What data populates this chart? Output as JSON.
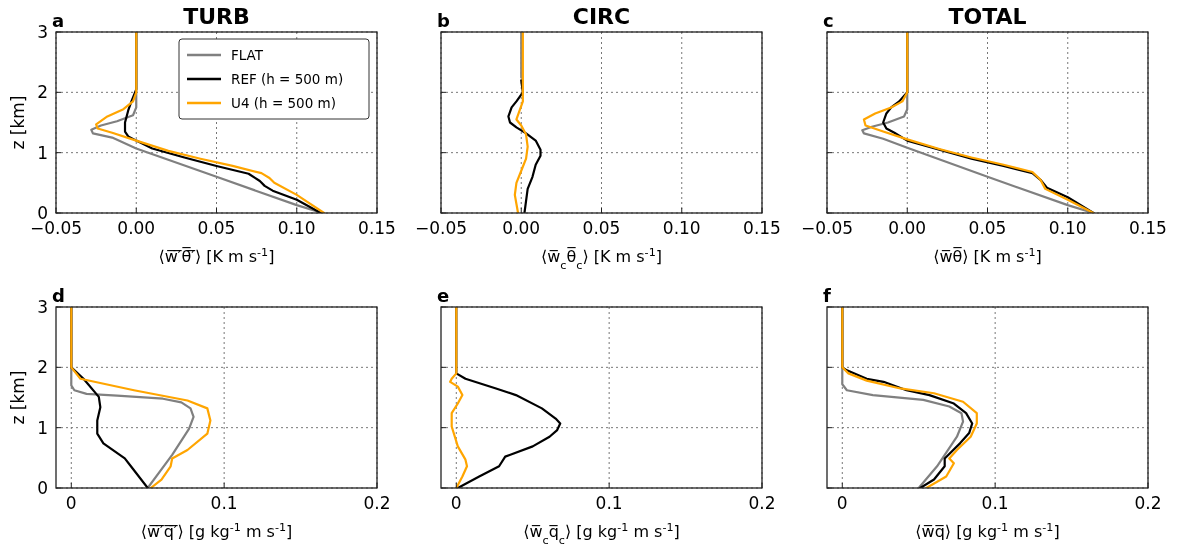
{
  "chart_data": [
    {
      "type": "line",
      "title": "TURB",
      "annotations": [
        "a"
      ],
      "xlabel": "⟨w̅′̅θ̅′̅⟩ [K m s$^{-1}$]",
      "ylabel": "z [km]",
      "xlim": [
        -0.05,
        0.15
      ],
      "xticks": [
        {
          "value": -0.05,
          "label": "−0.05"
        },
        {
          "value": 0,
          "label": "0.00"
        },
        {
          "value": 0.05,
          "label": "0.05"
        },
        {
          "value": 0.1,
          "label": "0.10"
        },
        {
          "value": 0.15,
          "label": "0.15"
        }
      ],
      "ylim": [
        0,
        3
      ],
      "yticks": [
        0,
        1,
        2,
        3
      ],
      "grid": true,
      "legend": "top right",
      "series": [
        {
          "name": "FLAT",
          "color": "#808080",
          "x": [
            0,
            0,
            -0.002,
            -0.012,
            -0.022,
            -0.028,
            -0.027,
            -0.015,
            0,
            0.05,
            0.1,
            0.116
          ],
          "values": [
            3,
            1.75,
            1.62,
            1.52,
            1.45,
            1.38,
            1.32,
            1.25,
            1.07,
            0.6,
            0.13,
            0
          ]
        },
        {
          "name": "REF (h = 500 m)",
          "color": "#000000",
          "x": [
            0,
            0,
            -0.003,
            -0.005,
            -0.007,
            -0.007,
            -0.005,
            0,
            0.01,
            0.03,
            0.05,
            0.07,
            0.077,
            0.08,
            0.085,
            0.1,
            0.115
          ],
          "values": [
            3,
            2.05,
            1.85,
            1.7,
            1.5,
            1.35,
            1.27,
            1.2,
            1.07,
            0.92,
            0.78,
            0.65,
            0.53,
            0.45,
            0.37,
            0.22,
            0
          ]
        },
        {
          "name": "U4 (h = 500 m)",
          "color": "#ffa500",
          "x": [
            0,
            0,
            -0.002,
            -0.008,
            -0.018,
            -0.025,
            -0.024,
            -0.015,
            0,
            0.02,
            0.04,
            0.06,
            0.078,
            0.083,
            0.086,
            0.1,
            0.117
          ],
          "values": [
            3,
            2,
            1.85,
            1.72,
            1.6,
            1.47,
            1.4,
            1.33,
            1.2,
            1.03,
            0.9,
            0.78,
            0.66,
            0.58,
            0.5,
            0.3,
            0
          ]
        }
      ]
    },
    {
      "type": "line",
      "title": "CIRC",
      "annotations": [
        "b"
      ],
      "xlabel": "⟨w̅$_{c}$θ̅$_{c}$⟩ [K m s$^{-1}$]",
      "xlim": [
        -0.05,
        0.15
      ],
      "xticks": [
        {
          "value": -0.05,
          "label": "−0.05"
        },
        {
          "value": 0,
          "label": "0.00"
        },
        {
          "value": 0.05,
          "label": "0.05"
        },
        {
          "value": 0.1,
          "label": "0.10"
        },
        {
          "value": 0.15,
          "label": "0.15"
        }
      ],
      "ylim": [
        0,
        3
      ],
      "yticks": [
        0,
        1,
        2,
        3
      ],
      "grid": true,
      "tick_labels": "x",
      "series": [
        {
          "color": "#808080",
          "x": [
            0,
            0
          ],
          "values": [
            3,
            2.25
          ]
        },
        {
          "color": "#000000",
          "x": [
            0,
            0.001,
            -0.003,
            -0.006,
            -0.008,
            -0.007,
            -0.003,
            0.003,
            0.009,
            0.012,
            0.012,
            0.009,
            0.007,
            0.004,
            0.003,
            0.002
          ],
          "values": [
            2.2,
            2,
            1.85,
            1.75,
            1.6,
            1.5,
            1.42,
            1.32,
            1.2,
            1.05,
            0.95,
            0.8,
            0.6,
            0.4,
            0.2,
            0
          ]
        },
        {
          "color": "#ffa500",
          "x": [
            0.001,
            0.001,
            0.001,
            -0.001,
            -0.003,
            0,
            0.003,
            0.004,
            0.003,
            0,
            -0.003,
            -0.004,
            -0.003,
            -0.002
          ],
          "values": [
            3,
            2,
            1.85,
            1.7,
            1.55,
            1.45,
            1.3,
            1.1,
            0.9,
            0.7,
            0.5,
            0.3,
            0.15,
            0
          ]
        }
      ]
    },
    {
      "type": "line",
      "title": "TOTAL",
      "annotations": [
        "c"
      ],
      "xlabel": "⟨w̅θ̅⟩ [K m s$^{-1}$]",
      "xlim": [
        -0.05,
        0.15
      ],
      "xticks": [
        {
          "value": -0.05,
          "label": "−0.05"
        },
        {
          "value": 0,
          "label": "0.00"
        },
        {
          "value": 0.05,
          "label": "0.05"
        },
        {
          "value": 0.1,
          "label": "0.10"
        },
        {
          "value": 0.15,
          "label": "0.15"
        }
      ],
      "ylim": [
        0,
        3
      ],
      "yticks": [
        0,
        1,
        2,
        3
      ],
      "grid": true,
      "tick_labels": "x",
      "series": [
        {
          "color": "#808080",
          "x": [
            0,
            0,
            -0.002,
            -0.012,
            -0.022,
            -0.028,
            -0.027,
            -0.015,
            0,
            0.05,
            0.1,
            0.116
          ],
          "values": [
            3,
            1.72,
            1.6,
            1.5,
            1.43,
            1.37,
            1.32,
            1.23,
            1.08,
            0.6,
            0.13,
            0
          ]
        },
        {
          "color": "#000000",
          "x": [
            0,
            0,
            -0.005,
            -0.01,
            -0.013,
            -0.015,
            -0.013,
            -0.008,
            0,
            0.02,
            0.04,
            0.06,
            0.078,
            0.083,
            0.087,
            0.1,
            0.116
          ],
          "values": [
            3,
            2,
            1.85,
            1.75,
            1.65,
            1.5,
            1.4,
            1.33,
            1.2,
            1.05,
            0.9,
            0.78,
            0.66,
            0.55,
            0.42,
            0.26,
            0
          ]
        },
        {
          "color": "#ffa500",
          "x": [
            0,
            0,
            -0.003,
            -0.01,
            -0.02,
            -0.027,
            -0.026,
            -0.015,
            0,
            0.02,
            0.04,
            0.06,
            0.078,
            0.083,
            0.086,
            0.1,
            0.116
          ],
          "values": [
            3,
            2,
            1.85,
            1.75,
            1.65,
            1.55,
            1.45,
            1.35,
            1.22,
            1.06,
            0.92,
            0.8,
            0.68,
            0.55,
            0.4,
            0.22,
            0
          ]
        }
      ]
    },
    {
      "type": "line",
      "annotations": [
        "d"
      ],
      "xlabel": "⟨w̅′̅q̅′̅⟩ [g kg$^{-1}$ m s$^{-1}$]",
      "ylabel": "z [km]",
      "xlim": [
        -0.01,
        0.2
      ],
      "xticks": [
        0,
        0.1,
        0.2
      ],
      "ylim": [
        0,
        3
      ],
      "yticks": [
        0,
        1,
        2,
        3
      ],
      "grid": true,
      "series": [
        {
          "color": "#808080",
          "x": [
            0,
            0,
            0.002,
            0.01,
            0.03,
            0.06,
            0.072,
            0.078,
            0.08,
            0.077,
            0.066,
            0.05
          ],
          "values": [
            3,
            1.7,
            1.62,
            1.56,
            1.53,
            1.48,
            1.42,
            1.32,
            1.18,
            0.98,
            0.55,
            0
          ]
        },
        {
          "color": "#000000",
          "x": [
            0,
            0,
            0.008,
            0.018,
            0.019,
            0.017,
            0.017,
            0.021,
            0.035,
            0.039,
            0.05
          ],
          "values": [
            3,
            2,
            1.81,
            1.51,
            1.34,
            1.12,
            0.9,
            0.74,
            0.49,
            0.36,
            0
          ]
        },
        {
          "color": "#ffa500",
          "x": [
            0,
            0,
            0.006,
            0.041,
            0.076,
            0.089,
            0.091,
            0.089,
            0.076,
            0.066,
            0.065,
            0.059,
            0.052
          ],
          "values": [
            3,
            2,
            1.81,
            1.62,
            1.45,
            1.32,
            1.12,
            0.9,
            0.63,
            0.49,
            0.36,
            0.14,
            0
          ]
        }
      ]
    },
    {
      "type": "line",
      "annotations": [
        "e"
      ],
      "xlabel": "⟨w̅$_{c}$q̅$_{c}$⟩ [g kg$^{-1}$ m s$^{-1}$]",
      "xlim": [
        -0.01,
        0.2
      ],
      "xticks": [
        0,
        0.1,
        0.2
      ],
      "ylim": [
        0,
        3
      ],
      "yticks": [
        0,
        1,
        2,
        3
      ],
      "grid": true,
      "tick_labels": "x",
      "series": [
        {
          "color": "#000000",
          "x": [
            0,
            0,
            0.006,
            0.026,
            0.039,
            0.056,
            0.065,
            0.068,
            0.066,
            0.061,
            0.05,
            0.032,
            0.028,
            0.015,
            0.001
          ],
          "values": [
            3,
            1.9,
            1.81,
            1.65,
            1.54,
            1.32,
            1.15,
            1.07,
            0.96,
            0.85,
            0.69,
            0.52,
            0.36,
            0.19,
            0
          ]
        },
        {
          "color": "#ffa500",
          "x": [
            0,
            0,
            -0.003,
            -0.004,
            0.001,
            0.004,
            0.001,
            -0.003,
            -0.003,
            0.001,
            0.006,
            0.007,
            0.004,
            0
          ],
          "values": [
            3,
            1.9,
            1.81,
            1.76,
            1.68,
            1.54,
            1.4,
            1.24,
            1.02,
            0.69,
            0.47,
            0.36,
            0.19,
            0
          ]
        }
      ]
    },
    {
      "type": "line",
      "annotations": [
        "f"
      ],
      "xlabel": "⟨w̅q̅⟩ [g kg$^{-1}$ m s$^{-1}$]",
      "xlim": [
        -0.01,
        0.2
      ],
      "xticks": [
        0,
        0.1,
        0.2
      ],
      "ylim": [
        0,
        3
      ],
      "yticks": [
        0,
        1,
        2,
        3
      ],
      "grid": true,
      "tick_labels": "x",
      "series": [
        {
          "color": "#808080",
          "x": [
            0,
            0,
            0.003,
            0.02,
            0.053,
            0.07,
            0.078,
            0.079,
            0.075,
            0.062,
            0.05
          ],
          "values": [
            3,
            1.72,
            1.62,
            1.54,
            1.46,
            1.35,
            1.24,
            1.1,
            0.85,
            0.36,
            0
          ]
        },
        {
          "color": "#000000",
          "x": [
            0,
            0,
            0.003,
            0.016,
            0.027,
            0.042,
            0.057,
            0.073,
            0.081,
            0.085,
            0.083,
            0.077,
            0.067,
            0.067,
            0.06,
            0.051
          ],
          "values": [
            3,
            2,
            1.95,
            1.81,
            1.76,
            1.62,
            1.54,
            1.4,
            1.24,
            1.07,
            0.91,
            0.74,
            0.49,
            0.36,
            0.14,
            0
          ]
        },
        {
          "color": "#ffa500",
          "x": [
            0,
            0,
            0.004,
            0.016,
            0.038,
            0.06,
            0.079,
            0.088,
            0.088,
            0.084,
            0.075,
            0.07,
            0.073,
            0.068,
            0.055
          ],
          "values": [
            3,
            2,
            1.9,
            1.78,
            1.65,
            1.57,
            1.43,
            1.24,
            1.07,
            0.85,
            0.63,
            0.49,
            0.41,
            0.19,
            0
          ]
        }
      ]
    }
  ]
}
